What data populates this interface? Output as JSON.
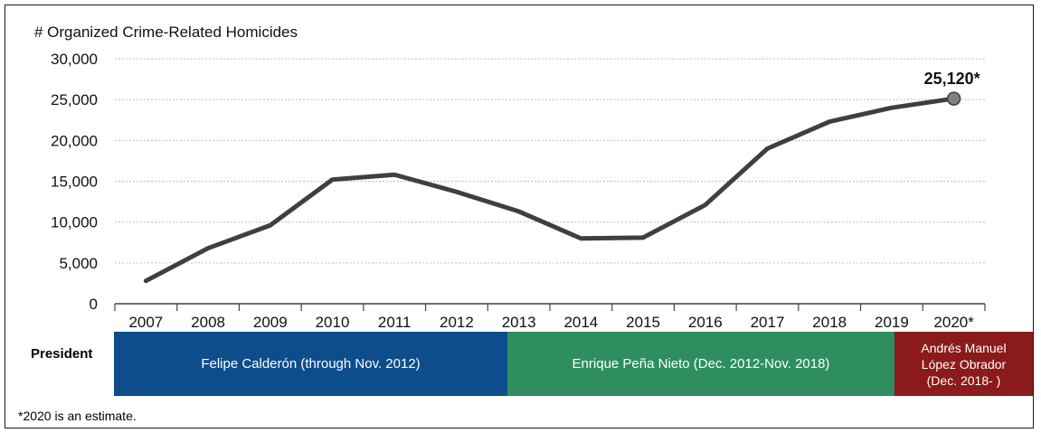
{
  "chart_data": {
    "type": "line",
    "title": "# Organized Crime-Related Homicides",
    "xlabel": "",
    "ylabel": "",
    "categories": [
      "2007",
      "2008",
      "2009",
      "2010",
      "2011",
      "2012",
      "2013",
      "2014",
      "2015",
      "2016",
      "2017",
      "2018",
      "2019",
      "2020*"
    ],
    "values": [
      2800,
      6800,
      9600,
      15200,
      15800,
      13700,
      11300,
      8000,
      8100,
      12100,
      19000,
      22300,
      24000,
      25120
    ],
    "ylim": [
      0,
      30000
    ],
    "yticks": [
      "0",
      "5,000",
      "10,000",
      "15,000",
      "20,000",
      "25,000",
      "30,000"
    ],
    "grid": true,
    "end_label": "25,120*",
    "color": "#3f3f3f"
  },
  "presidents": {
    "label": "President",
    "terms": [
      {
        "name": "Felipe Calderón (through Nov. 2012)",
        "color": "#0e4d8c"
      },
      {
        "name": "Enrique Peña Nieto (Dec. 2012-Nov. 2018)",
        "color": "#2e8e5f"
      },
      {
        "name": "Andrés Manuel López Obrador (Dec. 2018- )",
        "lines": [
          "Andrés Manuel",
          "López Obrador",
          "(Dec. 2018- )"
        ],
        "color": "#8b1a1a"
      }
    ]
  },
  "footnote": "*2020 is an estimate."
}
